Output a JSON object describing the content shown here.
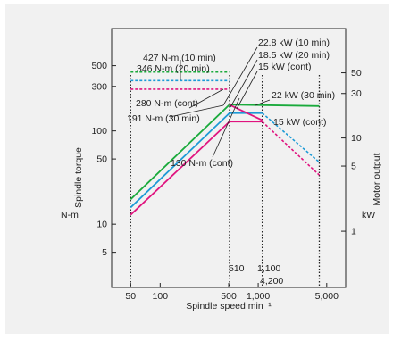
{
  "colors": {
    "green": "#1aaa3c",
    "blue": "#1c9ad6",
    "magenta": "#e0147f",
    "frame": "#222222",
    "background": "#f1f1f1"
  },
  "chart_data": {
    "type": "line",
    "title": "",
    "xlabel": "Spindle speed min⁻¹",
    "ylabel_left": "Spindle torque",
    "ylabel_left_unit": "N-m",
    "ylabel_right": "Motor output",
    "ylabel_right_unit": "kW",
    "x_scale": "log",
    "y_scale": "log",
    "xlim": [
      32,
      7800
    ],
    "ylim_left": [
      2.1,
      1250
    ],
    "ylim_right": [
      0.25,
      149
    ],
    "x_ticks": [
      50,
      100,
      500,
      1000,
      5000
    ],
    "x_tick_labels": [
      "50",
      "100",
      "500",
      "1,000",
      "5,000"
    ],
    "y_left_ticks": [
      5,
      10,
      50,
      100,
      300,
      500
    ],
    "y_left_tick_labels": [
      "5",
      "10",
      "50",
      "100",
      "300",
      "500"
    ],
    "y_right_ticks": [
      1,
      5,
      10,
      30,
      50
    ],
    "y_right_tick_labels": [
      "1",
      "5",
      "10",
      "30",
      "50"
    ],
    "series": [
      {
        "color": "green",
        "torque": {
          "x": [
            50,
            507
          ],
          "y": [
            427,
            427
          ]
        },
        "output": {
          "x": [
            50,
            510,
            1100,
            4200
          ],
          "y": [
            2.2,
            22.8,
            22,
            22
          ]
        }
      },
      {
        "color": "blue",
        "torque": {
          "x": [
            50,
            507
          ],
          "y": [
            346,
            346
          ]
        },
        "output": {
          "x": [
            50,
            510,
            1100,
            4200
          ],
          "y": [
            1.8,
            18.5,
            18.5,
            5.5
          ]
        }
      },
      {
        "color": "magenta",
        "torque": {
          "x": [
            50,
            507
          ],
          "y": [
            280,
            280
          ]
        },
        "output": {
          "x": [
            50,
            510,
            1100,
            4200
          ],
          "y": [
            1.5,
            15,
            15,
            4
          ]
        }
      }
    ],
    "solid_torque": [
      {
        "color": "magenta",
        "x": [
          507,
          1100
        ],
        "y": [
          191,
          130
        ]
      }
    ],
    "reference_lines_x": [
      50,
      510,
      1100,
      4200
    ],
    "reference_labels": [
      "510",
      "1,100",
      "4,200"
    ],
    "annotations": [
      "427 N-m (10 min)",
      "346 N-m (20 min)",
      "280 N-m (cont)",
      "191 N-m (30 min)",
      "130 N-m (cont)",
      "22.8 kW (10 min)",
      "18.5 kW (20 min)",
      "15 kW (cont)",
      "22 kW (30 min)",
      "15 kW (cont)"
    ]
  }
}
